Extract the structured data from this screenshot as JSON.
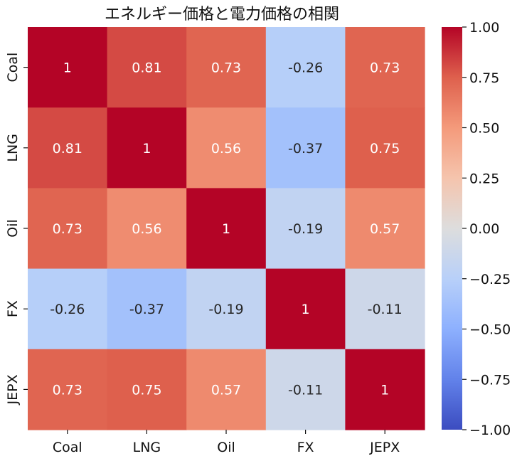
{
  "chart_data": {
    "type": "heatmap",
    "title": "エネルギー価格と電力価格の相関",
    "x_labels": [
      "Coal",
      "LNG",
      "Oil",
      "FX",
      "JEPX"
    ],
    "y_labels": [
      "Coal",
      "LNG",
      "Oil",
      "FX",
      "JEPX"
    ],
    "values": [
      [
        1,
        0.81,
        0.73,
        -0.26,
        0.73
      ],
      [
        0.81,
        1,
        0.56,
        -0.37,
        0.75
      ],
      [
        0.73,
        0.56,
        1,
        -0.19,
        0.57
      ],
      [
        -0.26,
        -0.37,
        -0.19,
        1,
        -0.11
      ],
      [
        0.73,
        0.75,
        0.57,
        -0.11,
        1
      ]
    ],
    "cell_labels": [
      [
        "1",
        "0.81",
        "0.73",
        "-0.26",
        "0.73"
      ],
      [
        "0.81",
        "1",
        "0.56",
        "-0.37",
        "0.75"
      ],
      [
        "0.73",
        "0.56",
        "1",
        "-0.19",
        "0.57"
      ],
      [
        "-0.26",
        "-0.37",
        "-0.19",
        "1",
        "-0.11"
      ],
      [
        "0.73",
        "0.75",
        "0.57",
        "-0.11",
        "1"
      ]
    ],
    "colormap": "coolwarm",
    "vmin": -1.0,
    "vmax": 1.0,
    "colorbar_ticks": [
      1.0,
      0.75,
      0.5,
      0.25,
      0.0,
      -0.25,
      -0.5,
      -0.75,
      -1.0
    ],
    "colorbar_tick_labels": [
      "1.00",
      "0.75",
      "0.50",
      "0.25",
      "0.00",
      "−0.25",
      "−0.50",
      "−0.75",
      "−1.00"
    ],
    "colors": {
      "low": "#3b4cc0",
      "mid": "#dddddd",
      "high": "#b40426"
    }
  }
}
